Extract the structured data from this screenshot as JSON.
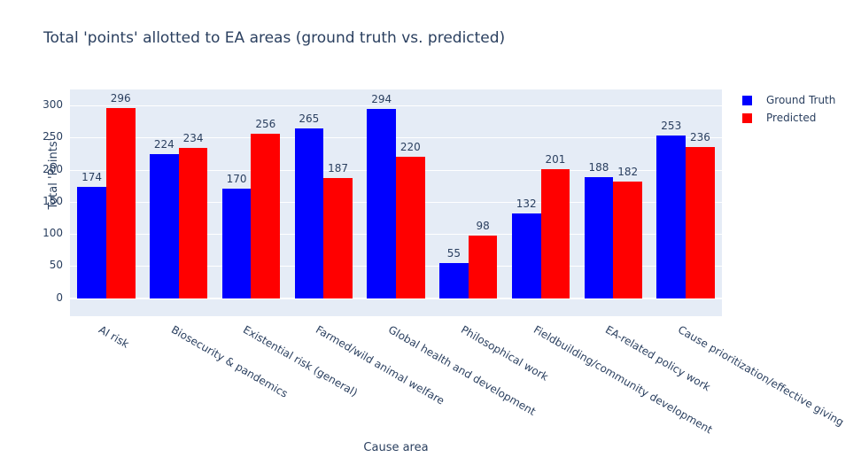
{
  "title": "Total 'points' allotted to EA areas (ground truth vs. predicted)",
  "colors": {
    "ground_truth": "#0000ff",
    "predicted": "#ff0000",
    "plot_background": "#e5ecf6",
    "grid": "#ffffff",
    "text": "#2a3f5f"
  },
  "legend": {
    "items": [
      {
        "label": "Ground Truth",
        "color": "#0000ff"
      },
      {
        "label": "Predicted",
        "color": "#ff0000"
      }
    ]
  },
  "chart_data": {
    "type": "bar",
    "title": "Total 'points' allotted to EA areas (ground truth vs. predicted)",
    "xlabel": "Cause area",
    "ylabel": "Total 'Points'",
    "categories": [
      "AI risk",
      "Biosecurity & pandemics",
      "Existential risk (general)",
      "Farmed/wild animal welfare",
      "Global health and development",
      "Philosophical work",
      "Fieldbuilding/community development",
      "EA-related policy work",
      "Cause prioritization/effective giving"
    ],
    "series": [
      {
        "name": "Ground Truth",
        "color": "#0000ff",
        "values": [
          174,
          224,
          170,
          265,
          294,
          55,
          132,
          188,
          253
        ]
      },
      {
        "name": "Predicted",
        "color": "#ff0000",
        "values": [
          296,
          234,
          256,
          187,
          220,
          98,
          201,
          182,
          236
        ]
      }
    ],
    "yticks": [
      0,
      50,
      100,
      150,
      200,
      250,
      300
    ],
    "ylim": [
      -28,
      325
    ],
    "bar_value_labels": true,
    "grid": true,
    "tick_angle": 30,
    "legend_position": "right"
  }
}
